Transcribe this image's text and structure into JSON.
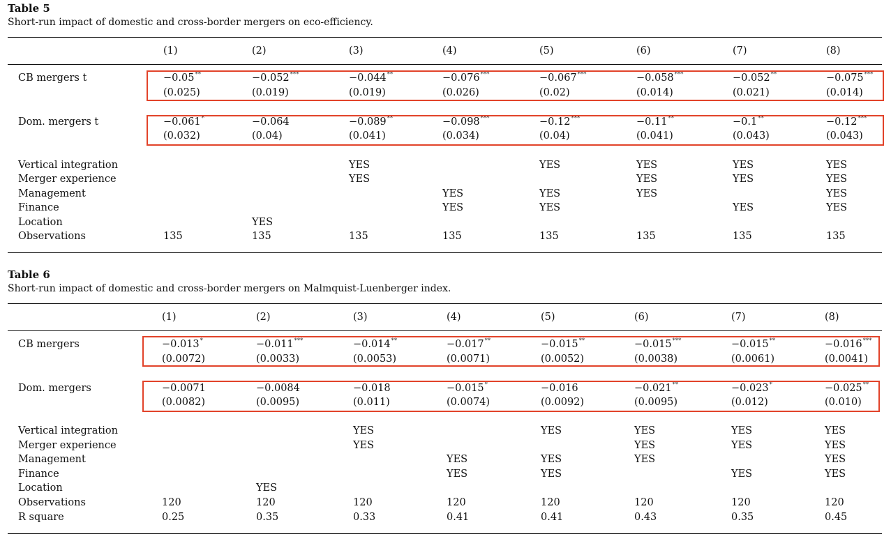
{
  "table5": {
    "label": "Table 5",
    "caption": "Short-run impact of domestic and cross-border mergers on eco-efficiency.",
    "columns": [
      "(1)",
      "(2)",
      "(3)",
      "(4)",
      "(5)",
      "(6)",
      "(7)",
      "(8)"
    ],
    "coef_rows": [
      {
        "label": "CB mergers t",
        "values": [
          {
            "v": "−0.05",
            "s": "**"
          },
          {
            "v": "−0.052",
            "s": "***"
          },
          {
            "v": "−0.044",
            "s": "**"
          },
          {
            "v": "−0.076",
            "s": "***"
          },
          {
            "v": "−0.067",
            "s": "***"
          },
          {
            "v": "−0.058",
            "s": "***"
          },
          {
            "v": "−0.052",
            "s": "**"
          },
          {
            "v": "−0.075",
            "s": "***"
          }
        ],
        "se": [
          "(0.025)",
          "(0.019)",
          "(0.019)",
          "(0.026)",
          "(0.02)",
          "(0.014)",
          "(0.021)",
          "(0.014)"
        ]
      },
      {
        "label": "Dom. mergers t",
        "values": [
          {
            "v": "−0.061",
            "s": "*"
          },
          {
            "v": "−0.064",
            "s": ""
          },
          {
            "v": "−0.089",
            "s": "**"
          },
          {
            "v": "−0.098",
            "s": "***"
          },
          {
            "v": "−0.12",
            "s": "***"
          },
          {
            "v": "−0.11",
            "s": "**"
          },
          {
            "v": "−0.1",
            "s": "**"
          },
          {
            "v": "−0.12",
            "s": "***"
          }
        ],
        "se": [
          "(0.032)",
          "(0.04)",
          "(0.041)",
          "(0.034)",
          "(0.04)",
          "(0.041)",
          "(0.043)",
          "(0.043)"
        ]
      }
    ],
    "control_rows": [
      {
        "label": "Vertical integration",
        "values": [
          "",
          "",
          "YES",
          "",
          "YES",
          "YES",
          "YES",
          "YES"
        ]
      },
      {
        "label": "Merger experience",
        "values": [
          "",
          "",
          "YES",
          "",
          "",
          "YES",
          "YES",
          "YES"
        ]
      },
      {
        "label": "Management",
        "values": [
          "",
          "",
          "",
          "YES",
          "YES",
          "YES",
          "",
          "YES"
        ]
      },
      {
        "label": "Finance",
        "values": [
          "",
          "",
          "",
          "YES",
          "YES",
          "",
          "YES",
          "YES"
        ]
      },
      {
        "label": "Location",
        "values": [
          "",
          "YES",
          "",
          "",
          "",
          "",
          "",
          ""
        ]
      },
      {
        "label": "Observations",
        "values": [
          "135",
          "135",
          "135",
          "135",
          "135",
          "135",
          "135",
          "135"
        ]
      }
    ]
  },
  "table6": {
    "label": "Table 6",
    "caption": "Short-run impact of domestic and cross-border mergers on Malmquist-Luenberger index.",
    "columns": [
      "(1)",
      "(2)",
      "(3)",
      "(4)",
      "(5)",
      "(6)",
      "(7)",
      "(8)"
    ],
    "coef_rows": [
      {
        "label": "CB mergers",
        "values": [
          {
            "v": "−0.013",
            "s": "*"
          },
          {
            "v": "−0.011",
            "s": "***"
          },
          {
            "v": "−0.014",
            "s": "**"
          },
          {
            "v": "−0.017",
            "s": "**"
          },
          {
            "v": "−0.015",
            "s": "**"
          },
          {
            "v": "−0.015",
            "s": "***"
          },
          {
            "v": "−0.015",
            "s": "**"
          },
          {
            "v": "−0.016",
            "s": "***"
          }
        ],
        "se": [
          "(0.0072)",
          "(0.0033)",
          "(0.0053)",
          "(0.0071)",
          "(0.0052)",
          "(0.0038)",
          "(0.0061)",
          "(0.0041)"
        ]
      },
      {
        "label": "Dom. mergers",
        "values": [
          {
            "v": "−0.0071",
            "s": ""
          },
          {
            "v": "−0.0084",
            "s": ""
          },
          {
            "v": "−0.018",
            "s": ""
          },
          {
            "v": "−0.015",
            "s": "*"
          },
          {
            "v": "−0.016",
            "s": ""
          },
          {
            "v": "−0.021",
            "s": "**"
          },
          {
            "v": "−0.023",
            "s": "*"
          },
          {
            "v": "−0.025",
            "s": "**"
          }
        ],
        "se": [
          "(0.0082)",
          "(0.0095)",
          "(0.011)",
          "(0.0074)",
          "(0.0092)",
          "(0.0095)",
          "(0.012)",
          "(0.010)"
        ]
      }
    ],
    "control_rows": [
      {
        "label": "Vertical integration",
        "values": [
          "",
          "",
          "YES",
          "",
          "YES",
          "YES",
          "YES",
          "YES"
        ]
      },
      {
        "label": "Merger experience",
        "values": [
          "",
          "",
          "YES",
          "",
          "",
          "YES",
          "YES",
          "YES"
        ]
      },
      {
        "label": "Management",
        "values": [
          "",
          "",
          "",
          "YES",
          "YES",
          "YES",
          "",
          "YES"
        ]
      },
      {
        "label": "Finance",
        "values": [
          "",
          "",
          "",
          "YES",
          "YES",
          "",
          "YES",
          "YES"
        ]
      },
      {
        "label": "Location",
        "values": [
          "",
          "YES",
          "",
          "",
          "",
          "",
          "",
          ""
        ]
      },
      {
        "label": "Observations",
        "values": [
          "120",
          "120",
          "120",
          "120",
          "120",
          "120",
          "120",
          "120"
        ]
      },
      {
        "label": "R square",
        "values": [
          "0.25",
          "0.35",
          "0.33",
          "0.41",
          "0.41",
          "0.43",
          "0.35",
          "0.45"
        ]
      }
    ]
  },
  "colors": {
    "highlight_box": "#e2432a",
    "text": "#111111",
    "rule": "#111111"
  }
}
